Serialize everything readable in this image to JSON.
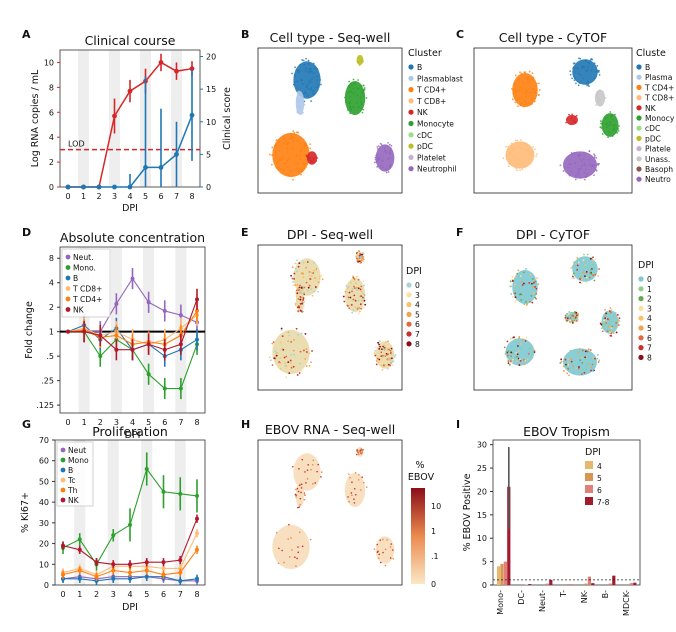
{
  "panel_letters": [
    "A",
    "B",
    "C",
    "D",
    "E",
    "F",
    "G",
    "H",
    "I"
  ],
  "colors": {
    "red": "#d62728",
    "blue": "#1f77b4",
    "green": "#2ca02c",
    "purple": "#9467bd",
    "orange": "#ff7f0e",
    "lightorange": "#ffbb78",
    "darkred": "#b2182b",
    "umap_cyan": "#7ec8cf"
  },
  "chart_data": [
    {
      "id": "A",
      "type": "line",
      "title": "Clinical course",
      "xlabel": "DPI",
      "x": [
        0,
        1,
        2,
        3,
        4,
        5,
        6,
        7,
        8
      ],
      "ylabel": "Log RNA copies / mL",
      "ylim": [
        0,
        11
      ],
      "yticks": [
        0,
        2,
        4,
        6,
        8,
        10
      ],
      "y2label": "Clinical score",
      "y2lim": [
        0,
        21
      ],
      "y2ticks": [
        0,
        5,
        10,
        15,
        20
      ],
      "lod": {
        "label": "LOD",
        "value": 3
      },
      "series": [
        {
          "axis": "left",
          "values": [
            0,
            0,
            0,
            5.7,
            7.7,
            8.5,
            10,
            9.3,
            9.5
          ],
          "err": [
            0,
            0,
            0,
            1.4,
            0.9,
            1,
            0.7,
            0.7,
            0.6
          ]
        },
        {
          "axis": "right",
          "values": [
            0,
            0,
            0,
            0,
            0,
            3,
            3,
            5,
            11
          ],
          "err": [
            0,
            0,
            0,
            0,
            2,
            14,
            9,
            5,
            7
          ]
        }
      ]
    },
    {
      "id": "B",
      "type": "scatter",
      "title": "Cell type - Seq-well",
      "legend_title": "Cluster",
      "legend": [
        "B",
        "Plasmablast",
        "T CD4+",
        "T CD8+",
        "NK",
        "Monocyte",
        "cDC",
        "pDC",
        "Platelet",
        "Neutrophil"
      ],
      "legend_colors": [
        "#1f77b4",
        "#aec7e8",
        "#ff7f0e",
        "#ffbb78",
        "#d62728",
        "#2ca02c",
        "#98df8a",
        "#bcbd22",
        "#c5b0d5",
        "#9467bd"
      ]
    },
    {
      "id": "C",
      "type": "scatter",
      "title": "Cell type - CyTOF",
      "legend_title": "Cluste",
      "legend": [
        "B",
        "Plasma",
        "T CD4+",
        "T CD8+",
        "NK",
        "Monocy",
        "cDC",
        "pDC",
        "Platele",
        "Unass.",
        "Basoph",
        "Neutro"
      ],
      "legend_colors": [
        "#1f77b4",
        "#aec7e8",
        "#ff7f0e",
        "#ffbb78",
        "#d62728",
        "#2ca02c",
        "#98df8a",
        "#bcbd22",
        "#c5b0d5",
        "#c7c7c7",
        "#8c564b",
        "#9467bd"
      ]
    },
    {
      "id": "D",
      "type": "line",
      "title": "Absolute concentration",
      "xlabel": "DPI",
      "ylabel": "Fold change",
      "x": [
        0,
        1,
        2,
        3,
        4,
        5,
        6,
        7,
        8
      ],
      "log_y": true,
      "ytick_labels": [
        "8",
        "4",
        "2",
        "1",
        ".5",
        ".25",
        ".125"
      ],
      "yticks": [
        8,
        4,
        2,
        1,
        0.5,
        0.25,
        0.125
      ],
      "series": [
        {
          "name": "Neut.",
          "values": [
            1,
            1,
            1,
            2.2,
            4.5,
            2.3,
            1.8,
            1.6,
            1.3
          ]
        },
        {
          "name": "Mono.",
          "values": [
            1,
            1,
            0.5,
            0.8,
            0.6,
            0.3,
            0.2,
            0.2,
            0.7
          ]
        },
        {
          "name": "B",
          "values": [
            1,
            1.2,
            0.8,
            1.1,
            0.6,
            0.7,
            0.5,
            0.6,
            0.8
          ]
        },
        {
          "name": "T CD8+",
          "values": [
            1,
            1.1,
            0.9,
            1,
            0.8,
            0.7,
            0.8,
            1.1,
            1.6
          ]
        },
        {
          "name": "T CD4+",
          "values": [
            1,
            1.05,
            0.85,
            0.9,
            0.7,
            0.75,
            0.7,
            0.9,
            1.8
          ]
        },
        {
          "name": "NK",
          "values": [
            1,
            1,
            0.9,
            0.6,
            0.6,
            0.7,
            0.6,
            0.7,
            2.5
          ]
        }
      ]
    },
    {
      "id": "E",
      "type": "scatter",
      "title": "DPI - Seq-well",
      "legend_title": "DPI",
      "legend": [
        "0",
        "3",
        "4",
        "5",
        "6",
        "7",
        "8"
      ],
      "legend_colors": [
        "#a6d4d8",
        "#fde0a0",
        "#f5c46a",
        "#f0a24e",
        "#e06a3b",
        "#c9302c",
        "#8b0d18"
      ]
    },
    {
      "id": "F",
      "type": "scatter",
      "title": "DPI - CyTOF",
      "legend_title": "DPI",
      "legend": [
        "0",
        "1",
        "2",
        "3",
        "4",
        "5",
        "6",
        "7",
        "8"
      ],
      "legend_colors": [
        "#7ec8cf",
        "#8ed08f",
        "#6aa84f",
        "#fde0a0",
        "#f5c46a",
        "#f0a24e",
        "#e06a3b",
        "#c9302c",
        "#8b0d18"
      ]
    },
    {
      "id": "G",
      "type": "line",
      "title": "Proliferation",
      "xlabel": "DPI",
      "ylabel": "% Ki67+",
      "x": [
        0,
        1,
        2,
        3,
        4,
        5,
        6,
        7,
        8
      ],
      "ylim": [
        0,
        70
      ],
      "yticks": [
        0,
        10,
        20,
        30,
        40,
        50,
        60,
        70
      ],
      "series": [
        {
          "name": "Neut",
          "values": [
            3,
            4,
            3,
            4,
            4,
            4,
            3,
            2,
            2
          ]
        },
        {
          "name": "Mono",
          "values": [
            18,
            22,
            10,
            24,
            29,
            56,
            45,
            44,
            43
          ]
        },
        {
          "name": "B",
          "values": [
            3,
            3,
            2,
            3,
            3,
            4,
            4,
            2,
            3
          ]
        },
        {
          "name": "Tc",
          "values": [
            6,
            8,
            5,
            9,
            9,
            9,
            8,
            8,
            25
          ]
        },
        {
          "name": "Th",
          "values": [
            5,
            7,
            4,
            7,
            6,
            7,
            5,
            6,
            17
          ]
        },
        {
          "name": "NK",
          "values": [
            19,
            17,
            11,
            10,
            10,
            11,
            11,
            12,
            32
          ]
        }
      ]
    },
    {
      "id": "H",
      "type": "scatter",
      "title": "EBOV RNA - Seq-well",
      "colorbar_label": "% EBOV",
      "colorbar_ticks": [
        "10",
        "1",
        ".1",
        "0"
      ]
    },
    {
      "id": "I",
      "type": "bar",
      "title": "EBOV Tropism",
      "ylabel": "% EBOV Positive",
      "ylim": [
        0,
        31
      ],
      "yticks": [
        0,
        5,
        10,
        15,
        20,
        25,
        30
      ],
      "categories": [
        "Mono-",
        "DC-",
        "Neut-",
        "T-",
        "NK-",
        "B-",
        "MDCK-"
      ],
      "legend_title": "DPI",
      "lod_value": 1.1,
      "series": [
        {
          "name": "4",
          "values": [
            4,
            0,
            0,
            0,
            0,
            0,
            0
          ]
        },
        {
          "name": "5",
          "values": [
            4.5,
            0,
            0,
            0,
            0.3,
            0,
            0
          ]
        },
        {
          "name": "6",
          "values": [
            5,
            0.1,
            0.3,
            0.2,
            1.8,
            0.3,
            0.4
          ]
        },
        {
          "name": "7-8",
          "values": [
            21,
            0.2,
            1.1,
            0.1,
            0.4,
            2,
            0.5
          ]
        }
      ]
    }
  ]
}
